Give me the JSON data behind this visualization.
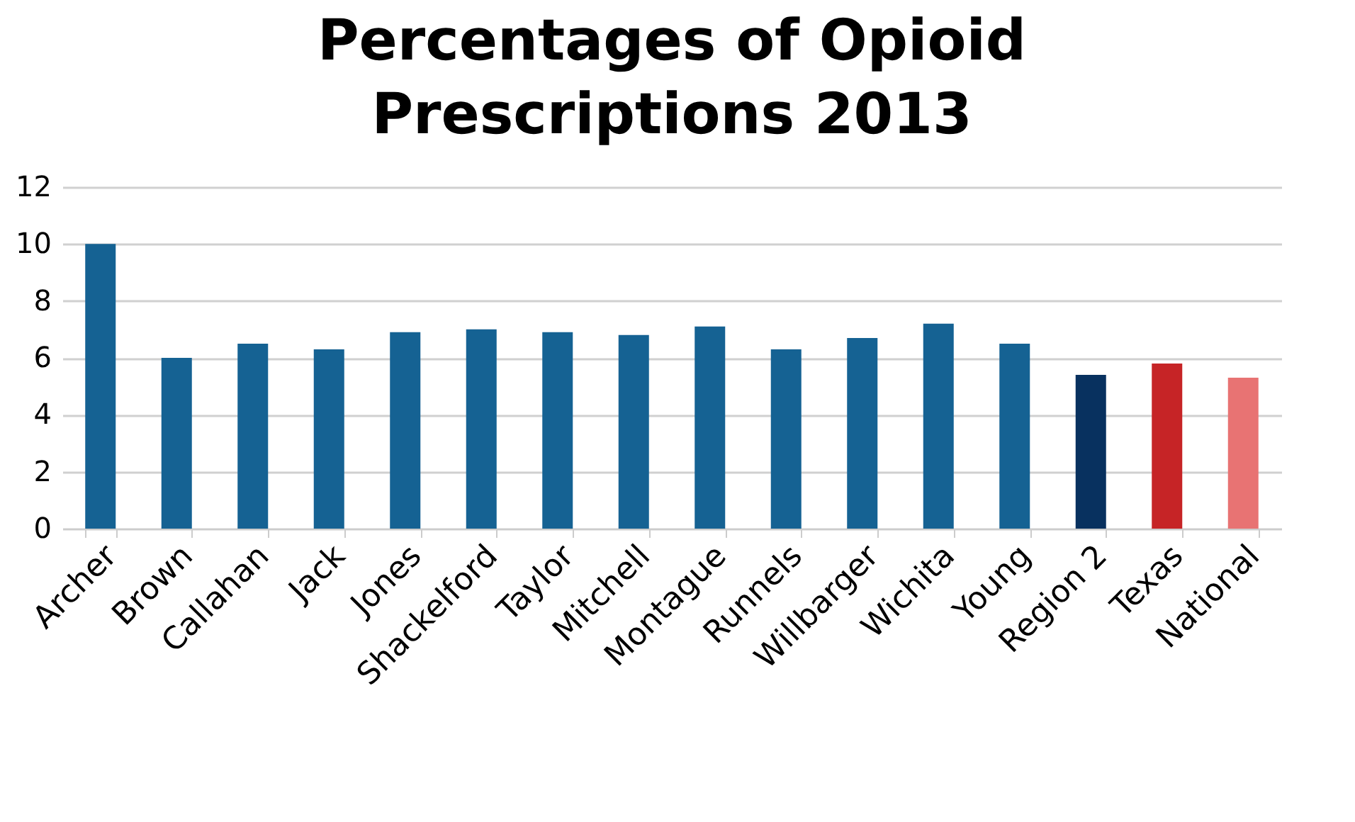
{
  "chart_data": {
    "type": "bar",
    "title": [
      "Percentages of Opioid",
      "Prescriptions 2013"
    ],
    "categories": [
      "Archer",
      "Brown",
      "Callahan",
      "Jack",
      "Jones",
      "Shackelford",
      "Taylor",
      "Mitchell",
      "Montague",
      "Runnels",
      "Willbarger",
      "Wichita",
      "Young",
      "Region 2",
      "Texas",
      "National"
    ],
    "values": [
      10.0,
      6.0,
      6.5,
      6.3,
      6.9,
      7.0,
      6.9,
      6.8,
      7.1,
      6.3,
      6.7,
      7.2,
      6.5,
      5.4,
      5.8,
      5.3
    ],
    "colors": [
      "#156293",
      "#156293",
      "#156293",
      "#156293",
      "#156293",
      "#156293",
      "#156293",
      "#156293",
      "#156293",
      "#156293",
      "#156293",
      "#156293",
      "#156293",
      "#08315f",
      "#c62426",
      "#e87373"
    ],
    "ylim": [
      0,
      12
    ],
    "yticks": [
      0,
      2,
      4,
      6,
      8,
      10,
      12
    ],
    "grid": "y"
  }
}
